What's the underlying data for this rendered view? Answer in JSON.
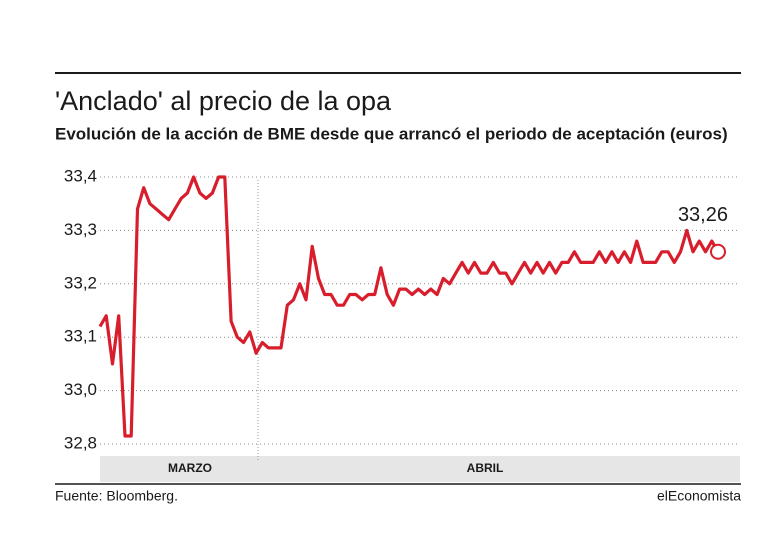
{
  "chart_data": {
    "type": "line",
    "title": "'Anclado' al precio de la opa",
    "subtitle": "Evolución de la acción de BME desde que arrancó el periodo de aceptación (euros)",
    "x_labels": [
      "MARZO",
      "ABRIL"
    ],
    "series": [
      {
        "name": "BME",
        "color": "#d81e2c",
        "values": [
          33.12,
          33.14,
          33.05,
          33.14,
          32.83,
          32.83,
          33.34,
          33.38,
          33.35,
          33.34,
          33.33,
          33.32,
          33.34,
          33.36,
          33.37,
          33.4,
          33.37,
          33.36,
          33.37,
          33.4,
          33.4,
          33.13,
          33.1,
          33.09,
          33.11,
          33.07,
          33.09,
          33.08,
          33.08,
          33.08,
          33.16,
          33.17,
          33.2,
          33.17,
          33.27,
          33.21,
          33.18,
          33.18,
          33.16,
          33.16,
          33.18,
          33.18,
          33.17,
          33.18,
          33.18,
          33.23,
          33.18,
          33.16,
          33.19,
          33.19,
          33.18,
          33.19,
          33.18,
          33.19,
          33.18,
          33.21,
          33.2,
          33.22,
          33.24,
          33.22,
          33.24,
          33.22,
          33.22,
          33.24,
          33.22,
          33.22,
          33.2,
          33.22,
          33.24,
          33.22,
          33.24,
          33.22,
          33.24,
          33.22,
          33.24,
          33.24,
          33.26,
          33.24,
          33.24,
          33.24,
          33.26,
          33.24,
          33.26,
          33.24,
          33.26,
          33.24,
          33.28,
          33.24,
          33.24,
          33.24,
          33.26,
          33.26,
          33.24,
          33.26,
          33.3,
          33.26,
          33.28,
          33.26,
          33.28,
          33.26
        ],
        "value_labels": [
          null,
          null,
          null,
          null,
          null,
          null,
          null,
          null,
          null,
          null,
          null,
          null,
          null,
          null,
          null,
          null,
          null,
          null,
          null,
          null,
          null,
          null,
          null,
          null,
          null,
          null,
          null,
          null,
          null,
          null,
          null,
          null,
          null,
          null,
          null,
          null,
          null,
          null,
          null,
          null,
          null,
          null,
          null,
          null,
          null,
          null,
          null,
          null,
          null,
          null,
          null,
          null,
          null,
          null,
          null,
          null,
          null,
          null,
          null,
          null,
          null,
          null,
          null,
          null,
          null,
          null,
          null,
          null,
          null,
          null,
          null,
          null,
          null,
          null,
          null,
          null,
          null,
          null,
          null,
          null,
          null,
          null,
          null,
          null,
          null,
          null,
          null,
          null,
          null,
          null,
          null,
          null,
          null,
          null,
          null,
          null,
          null,
          null,
          null,
          "33,26"
        ]
      }
    ],
    "ylim": [
      32.8,
      33.4
    ],
    "yticks": [
      {
        "value": 33.4,
        "label": "33,4"
      },
      {
        "value": 33.3,
        "label": "33,3"
      },
      {
        "value": 33.2,
        "label": "33,2"
      },
      {
        "value": 33.1,
        "label": "33,1"
      },
      {
        "value": 33.0,
        "label": "33,0"
      },
      {
        "value": 32.8,
        "label": "32,8"
      }
    ],
    "grid": true,
    "source": "Fuente: Bloomberg.",
    "brand": "elEconomista"
  }
}
